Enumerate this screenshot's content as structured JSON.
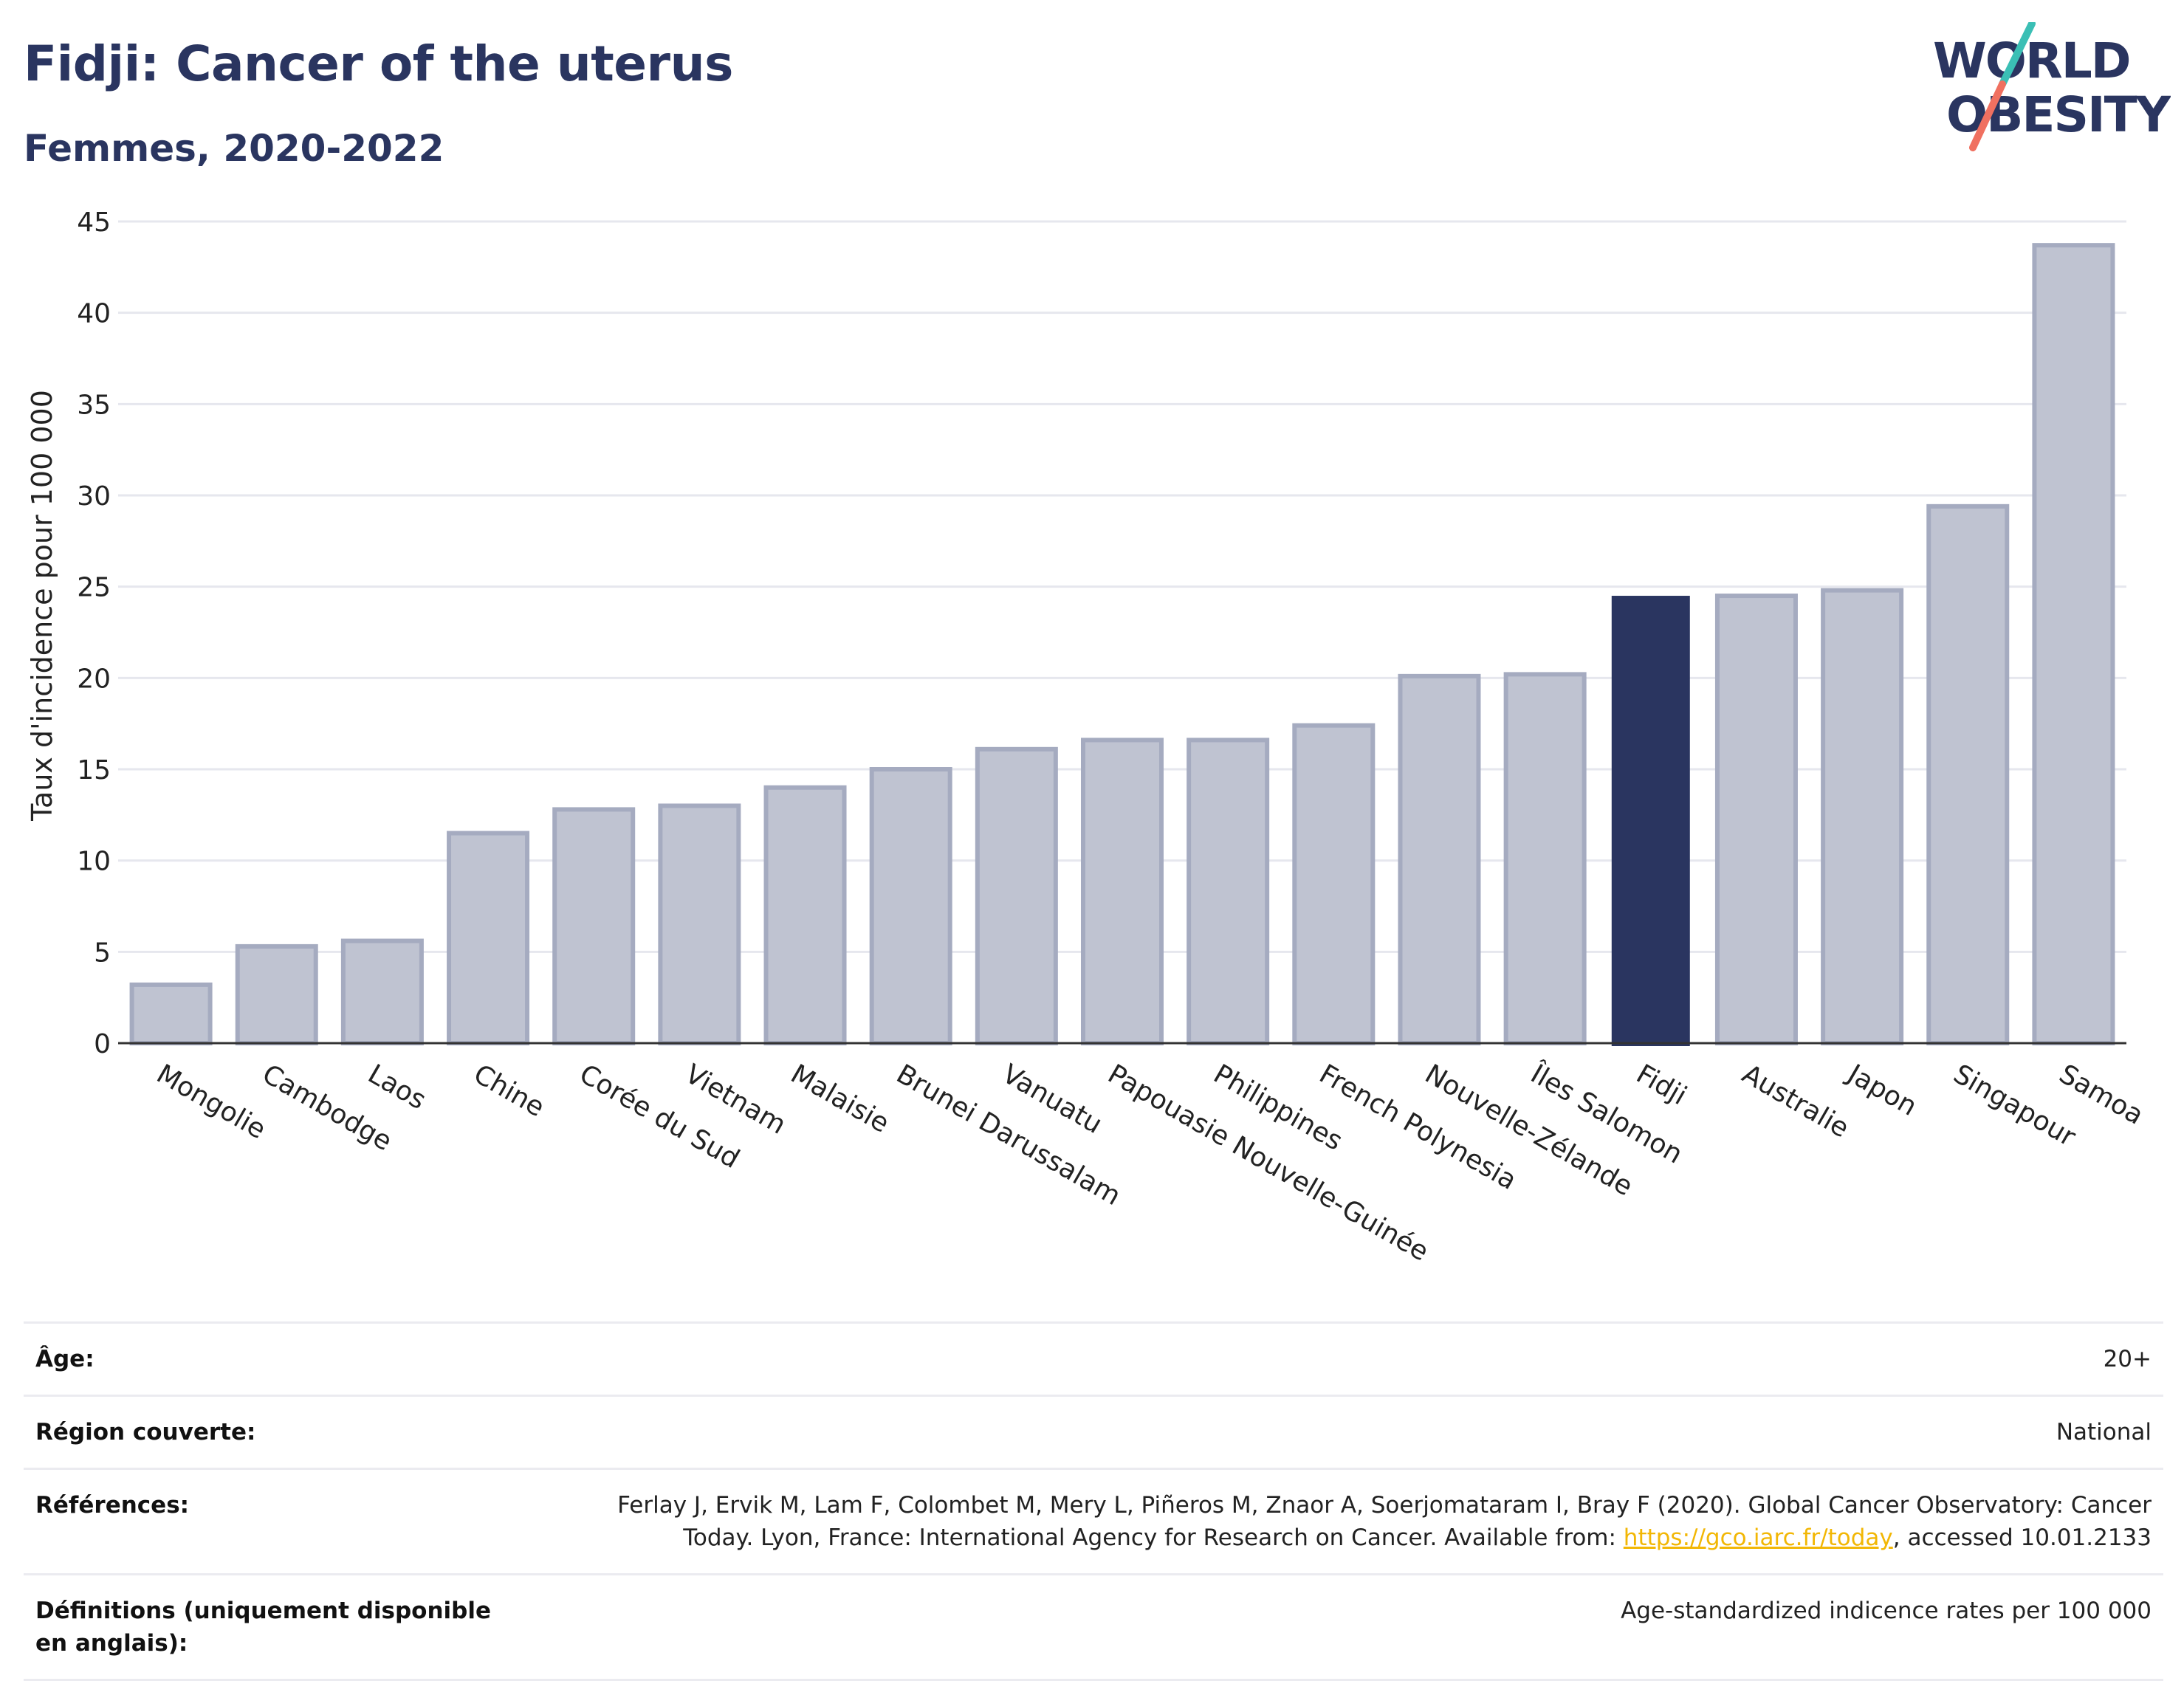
{
  "header": {
    "title": "Fidji: Cancer of the uterus",
    "subtitle": "Femmes, 2020-2022"
  },
  "logo": {
    "line1": "WORLD",
    "line2": "OBESITY"
  },
  "colors": {
    "highlight": "#2a3560",
    "bar_fill": "#bfc3d1",
    "bar_stroke": "#a5abc0",
    "grid": "#e6e7ee",
    "text": "#2a3560",
    "logo_teal": "#3bbfb5",
    "logo_coral": "#f07060"
  },
  "chart_data": {
    "type": "bar",
    "ylabel": "Taux d'incidence pour 100 000",
    "ylim": [
      0,
      45
    ],
    "yticks": [
      0,
      5,
      10,
      15,
      20,
      25,
      30,
      35,
      40,
      45
    ],
    "grid": true,
    "highlight": "Fidji",
    "categories": [
      "Mongolie",
      "Cambodge",
      "Laos",
      "Chine",
      "Corée du Sud",
      "Vietnam",
      "Malaisie",
      "Brunei Darussalam",
      "Vanuatu",
      "Papouasie Nouvelle-Guinée",
      "Philippines",
      "French Polynesia",
      "Nouvelle-Zélande",
      "Îles Salomon",
      "Fidji",
      "Australie",
      "Japon",
      "Singapour",
      "Samoa"
    ],
    "values": [
      3.2,
      5.3,
      5.6,
      11.5,
      12.8,
      13.0,
      14.0,
      15.0,
      16.1,
      16.6,
      16.6,
      17.4,
      20.1,
      20.2,
      24.5,
      24.5,
      24.8,
      29.4,
      43.7
    ]
  },
  "meta": {
    "age_label": "Âge:",
    "age_value": "20+",
    "region_label": "Région couverte:",
    "region_value": "National",
    "refs_label": "Références:",
    "refs_text_1": "Ferlay J, Ervik M, Lam F, Colombet M, Mery L, Piñeros M, Znaor A, Soerjomataram I, Bray F (2020). Global Cancer Observatory: Cancer Today. Lyon, France: International Agency for Research on Cancer. Available from: ",
    "refs_link": "https://gco.iarc.fr/today",
    "refs_text_2": ", accessed 10.01.2133",
    "defs_label": "Définitions (uniquement disponible en anglais):",
    "defs_value": "Age-standardized indicence rates per 100 000"
  }
}
